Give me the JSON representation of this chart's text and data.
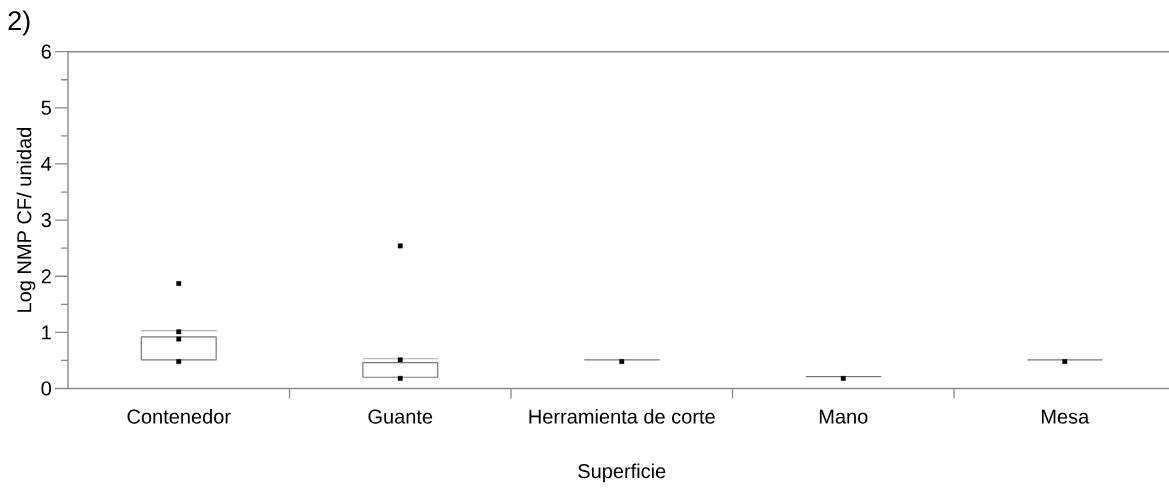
{
  "chart_data": {
    "type": "box",
    "title": "2)",
    "xlabel": "Superficie",
    "ylabel": "Log NMP CF/ unidad",
    "categories": [
      "Contenedor",
      "Guante",
      "Herramienta de corte",
      "Mano",
      "Mesa"
    ],
    "ylim": [
      0,
      6
    ],
    "yticks": [
      0,
      {
        "value": 0.5,
        "label": null
      },
      1,
      {
        "value": 1.5,
        "label": null
      },
      2,
      {
        "value": 2.5,
        "label": null
      },
      3,
      {
        "value": 3.5,
        "label": null
      },
      4,
      {
        "value": 4.5,
        "label": null
      },
      5,
      {
        "value": 5.5,
        "label": null
      },
      6
    ],
    "marker": "square",
    "series": [
      {
        "color": "#777777",
        "boxes": [
          {
            "low": 0.51,
            "q1": 0.51,
            "median": 0.92,
            "q3": 0.92,
            "high": 0.92
          },
          {
            "low": 0.2,
            "q1": 0.2,
            "median": 0.46,
            "q3": 0.46,
            "high": 0.46
          },
          {
            "low": 0.51,
            "q1": 0.51,
            "median": 0.51,
            "q3": 0.51,
            "high": 0.51
          },
          {
            "low": 0.21,
            "q1": 0.21,
            "median": 0.21,
            "q3": 0.21,
            "high": 0.21
          },
          {
            "low": 0.51,
            "q1": 0.51,
            "median": 0.51,
            "q3": 0.51,
            "high": 0.51
          }
        ]
      },
      {
        "color": "#aaaaaa",
        "boxes": [
          {
            "low": 1.03,
            "q1": 1.03,
            "median": 1.03,
            "q3": 1.03,
            "high": 1.03
          },
          {
            "low": 0.53,
            "q1": 0.53,
            "median": 0.53,
            "q3": 0.53,
            "high": 0.53
          },
          null,
          null,
          null
        ]
      },
      {
        "type": "scatter",
        "color": "#000000",
        "x": [
          "Contenedor",
          "Contenedor",
          "Contenedor",
          "Contenedor",
          "Guante",
          "Guante",
          "Guante",
          "Herramienta de corte",
          "Mano",
          "Mesa"
        ],
        "values": [
          1.87,
          1.01,
          0.88,
          0.48,
          2.54,
          0.51,
          0.18,
          0.48,
          0.18,
          0.48
        ]
      }
    ]
  }
}
